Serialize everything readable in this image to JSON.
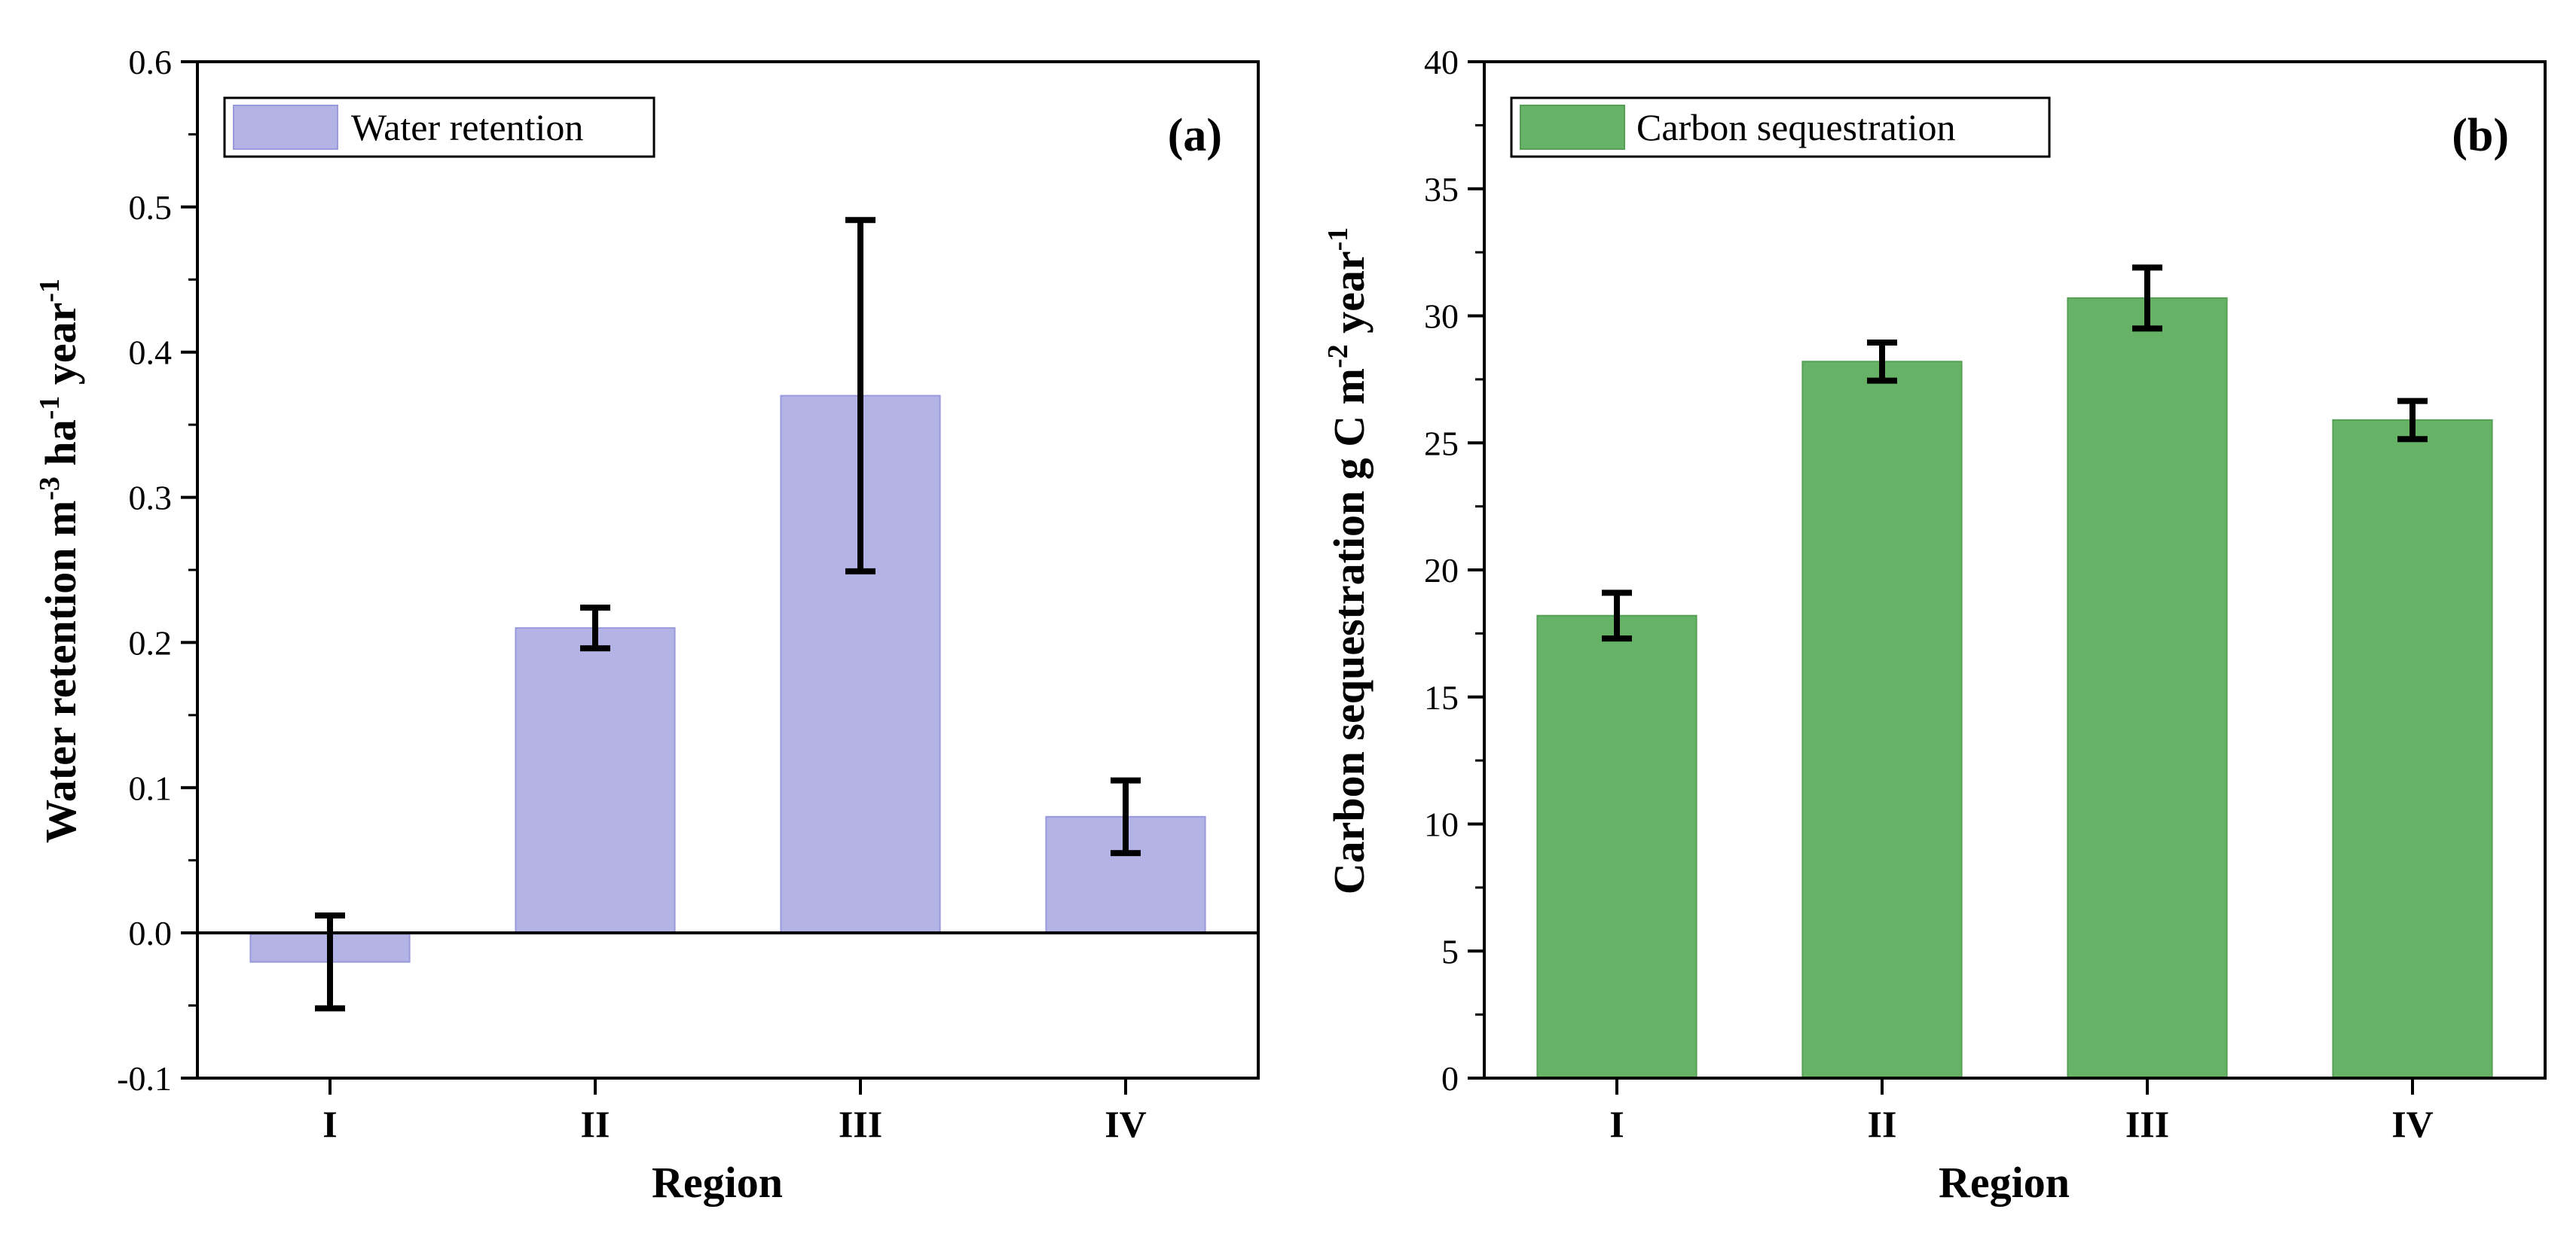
{
  "chart_data": [
    {
      "type": "bar",
      "panel_label": "(a)",
      "categories": [
        "I",
        "II",
        "III",
        "IV"
      ],
      "values": [
        -0.02,
        0.21,
        0.37,
        0.08
      ],
      "errors": [
        0.032,
        0.014,
        0.121,
        0.025
      ],
      "series_name": "Water retention",
      "color": "#b3b3e6",
      "edge_color": "#9999dd",
      "xlabel": "Region",
      "ylabel_parts": {
        "base": "Water retention  m",
        "sup1": "-3",
        "mid1": " ha",
        "sup2": "-1",
        "mid2": " year",
        "sup3": "-1"
      },
      "ylim": [
        -0.1,
        0.6
      ],
      "yticks": [
        -0.1,
        0.0,
        0.1,
        0.2,
        0.3,
        0.4,
        0.5,
        0.6
      ],
      "ytick_labels": [
        "-0.1",
        "0.0",
        "0.1",
        "0.2",
        "0.3",
        "0.4",
        "0.5",
        "0.6"
      ],
      "legend_position": "top-left"
    },
    {
      "type": "bar",
      "panel_label": "(b)",
      "categories": [
        "I",
        "II",
        "III",
        "IV"
      ],
      "values": [
        18.2,
        28.2,
        30.7,
        25.9
      ],
      "errors": [
        0.9,
        0.75,
        1.2,
        0.75
      ],
      "series_name": "Carbon sequestration",
      "color": "#66b266",
      "edge_color": "#55a055",
      "xlabel": "Region",
      "ylabel_parts": {
        "base": "Carbon sequestration  g C m",
        "sup1": "-2",
        "mid1": " year",
        "sup2": "-1",
        "mid2": "",
        "sup3": ""
      },
      "ylim": [
        0,
        40
      ],
      "yticks": [
        0,
        5,
        10,
        15,
        20,
        25,
        30,
        35,
        40
      ],
      "ytick_labels": [
        "0",
        "5",
        "10",
        "15",
        "20",
        "25",
        "30",
        "35",
        "40"
      ],
      "legend_position": "top-left"
    }
  ]
}
